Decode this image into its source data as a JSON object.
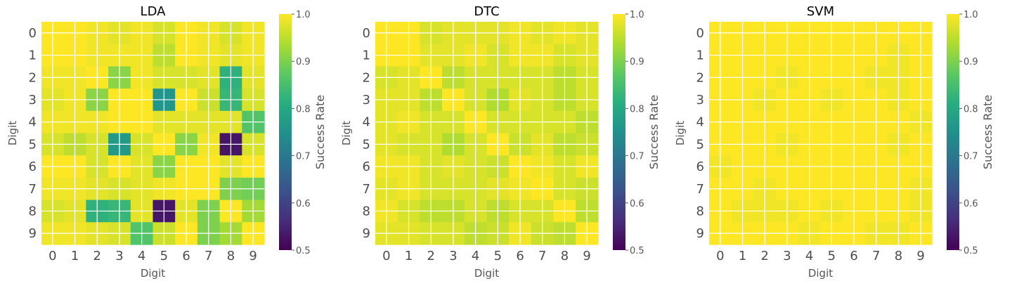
{
  "chart_data": [
    {
      "type": "heatmap",
      "title": "LDA",
      "xlabel": "Digit",
      "ylabel": "Digit",
      "x_categories": [
        "0",
        "1",
        "2",
        "3",
        "4",
        "5",
        "6",
        "7",
        "8",
        "9"
      ],
      "y_categories": [
        "0",
        "1",
        "2",
        "3",
        "4",
        "5",
        "6",
        "7",
        "8",
        "9"
      ],
      "values": [
        [
          1.0,
          1.0,
          0.99,
          0.98,
          0.99,
          0.97,
          1.0,
          0.99,
          0.97,
          0.99
        ],
        [
          1.0,
          1.0,
          0.99,
          0.99,
          0.99,
          0.95,
          1.0,
          0.99,
          0.98,
          0.99
        ],
        [
          0.99,
          0.99,
          1.0,
          0.91,
          0.99,
          0.97,
          0.97,
          0.98,
          0.82,
          0.98
        ],
        [
          0.98,
          0.99,
          0.91,
          1.0,
          1.0,
          0.76,
          1.0,
          0.96,
          0.83,
          0.97
        ],
        [
          0.99,
          0.99,
          0.99,
          1.0,
          1.0,
          0.98,
          0.98,
          0.98,
          0.98,
          0.86
        ],
        [
          0.97,
          0.95,
          0.97,
          0.77,
          0.97,
          1.0,
          0.91,
          0.99,
          0.53,
          0.97
        ],
        [
          1.0,
          1.0,
          0.97,
          1.0,
          0.98,
          0.91,
          1.0,
          1.0,
          0.98,
          1.0
        ],
        [
          0.99,
          0.99,
          0.98,
          0.97,
          0.98,
          0.99,
          1.0,
          1.0,
          0.9,
          0.89
        ],
        [
          0.97,
          0.98,
          0.82,
          0.83,
          0.98,
          0.53,
          0.98,
          0.9,
          1.0,
          0.93
        ],
        [
          0.99,
          0.99,
          0.98,
          0.97,
          0.86,
          0.96,
          1.0,
          0.9,
          0.93,
          1.0
        ]
      ],
      "colorbar": {
        "label": "Success Rate",
        "range": [
          0.5,
          1.0
        ],
        "ticks": [
          "0.5",
          "0.6",
          "0.7",
          "0.8",
          "0.9",
          "1.0"
        ]
      }
    },
    {
      "type": "heatmap",
      "title": "DTC",
      "xlabel": "Digit",
      "ylabel": "Digit",
      "x_categories": [
        "0",
        "1",
        "2",
        "3",
        "4",
        "5",
        "6",
        "7",
        "8",
        "9"
      ],
      "y_categories": [
        "0",
        "1",
        "2",
        "3",
        "4",
        "5",
        "6",
        "7",
        "8",
        "9"
      ],
      "values": [
        [
          1.0,
          1.0,
          0.97,
          0.98,
          0.98,
          0.98,
          0.99,
          0.98,
          0.99,
          0.98
        ],
        [
          1.0,
          1.0,
          0.98,
          0.98,
          0.99,
          0.97,
          0.99,
          0.99,
          0.97,
          0.98
        ],
        [
          0.97,
          0.98,
          1.0,
          0.95,
          0.97,
          0.97,
          0.97,
          0.97,
          0.95,
          0.97
        ],
        [
          0.98,
          0.98,
          0.95,
          1.0,
          0.97,
          0.94,
          0.98,
          0.97,
          0.95,
          0.97
        ],
        [
          0.98,
          0.99,
          0.97,
          0.97,
          1.0,
          0.97,
          0.97,
          0.97,
          0.97,
          0.95
        ],
        [
          0.98,
          0.97,
          0.97,
          0.94,
          0.97,
          1.0,
          0.96,
          0.98,
          0.95,
          0.96
        ],
        [
          0.99,
          0.99,
          0.97,
          0.98,
          0.97,
          0.96,
          1.0,
          0.99,
          0.97,
          0.99
        ],
        [
          0.98,
          0.99,
          0.97,
          0.97,
          0.97,
          0.98,
          0.99,
          1.0,
          0.97,
          0.96
        ],
        [
          0.99,
          0.97,
          0.95,
          0.95,
          0.97,
          0.95,
          0.97,
          0.97,
          1.0,
          0.95
        ],
        [
          0.98,
          0.98,
          0.97,
          0.97,
          0.95,
          0.96,
          0.99,
          0.96,
          0.95,
          1.0
        ]
      ],
      "colorbar": {
        "label": "Success Rate",
        "range": [
          0.5,
          1.0
        ],
        "ticks": [
          "0.5",
          "0.6",
          "0.7",
          "0.8",
          "0.9",
          "1.0"
        ]
      }
    },
    {
      "type": "heatmap",
      "title": "SVM",
      "xlabel": "Digit",
      "ylabel": "Digit",
      "x_categories": [
        "0",
        "1",
        "2",
        "3",
        "4",
        "5",
        "6",
        "7",
        "8",
        "9"
      ],
      "y_categories": [
        "0",
        "1",
        "2",
        "3",
        "4",
        "5",
        "6",
        "7",
        "8",
        "9"
      ],
      "values": [
        [
          1.0,
          1.0,
          1.0,
          1.0,
          1.0,
          1.0,
          1.0,
          1.0,
          1.0,
          1.0
        ],
        [
          1.0,
          1.0,
          1.0,
          1.0,
          1.0,
          1.0,
          1.0,
          1.0,
          0.99,
          1.0
        ],
        [
          1.0,
          1.0,
          1.0,
          0.99,
          1.0,
          1.0,
          1.0,
          0.99,
          0.99,
          1.0
        ],
        [
          1.0,
          1.0,
          0.99,
          1.0,
          1.0,
          0.99,
          1.0,
          1.0,
          0.99,
          1.0
        ],
        [
          1.0,
          1.0,
          1.0,
          1.0,
          1.0,
          1.0,
          1.0,
          1.0,
          1.0,
          0.99
        ],
        [
          1.0,
          1.0,
          1.0,
          0.99,
          1.0,
          1.0,
          1.0,
          1.0,
          0.99,
          1.0
        ],
        [
          0.99,
          1.0,
          1.0,
          1.0,
          1.0,
          1.0,
          1.0,
          1.0,
          1.0,
          1.0
        ],
        [
          1.0,
          1.0,
          0.99,
          1.0,
          1.0,
          1.0,
          1.0,
          1.0,
          1.0,
          0.99
        ],
        [
          1.0,
          0.99,
          0.99,
          0.99,
          1.0,
          0.99,
          1.0,
          1.0,
          1.0,
          0.99
        ],
        [
          1.0,
          1.0,
          1.0,
          1.0,
          0.99,
          1.0,
          1.0,
          0.99,
          0.99,
          1.0
        ]
      ],
      "colorbar": {
        "label": "Success Rate",
        "range": [
          0.5,
          1.0
        ],
        "ticks": [
          "0.5",
          "0.6",
          "0.7",
          "0.8",
          "0.9",
          "1.0"
        ]
      }
    }
  ]
}
